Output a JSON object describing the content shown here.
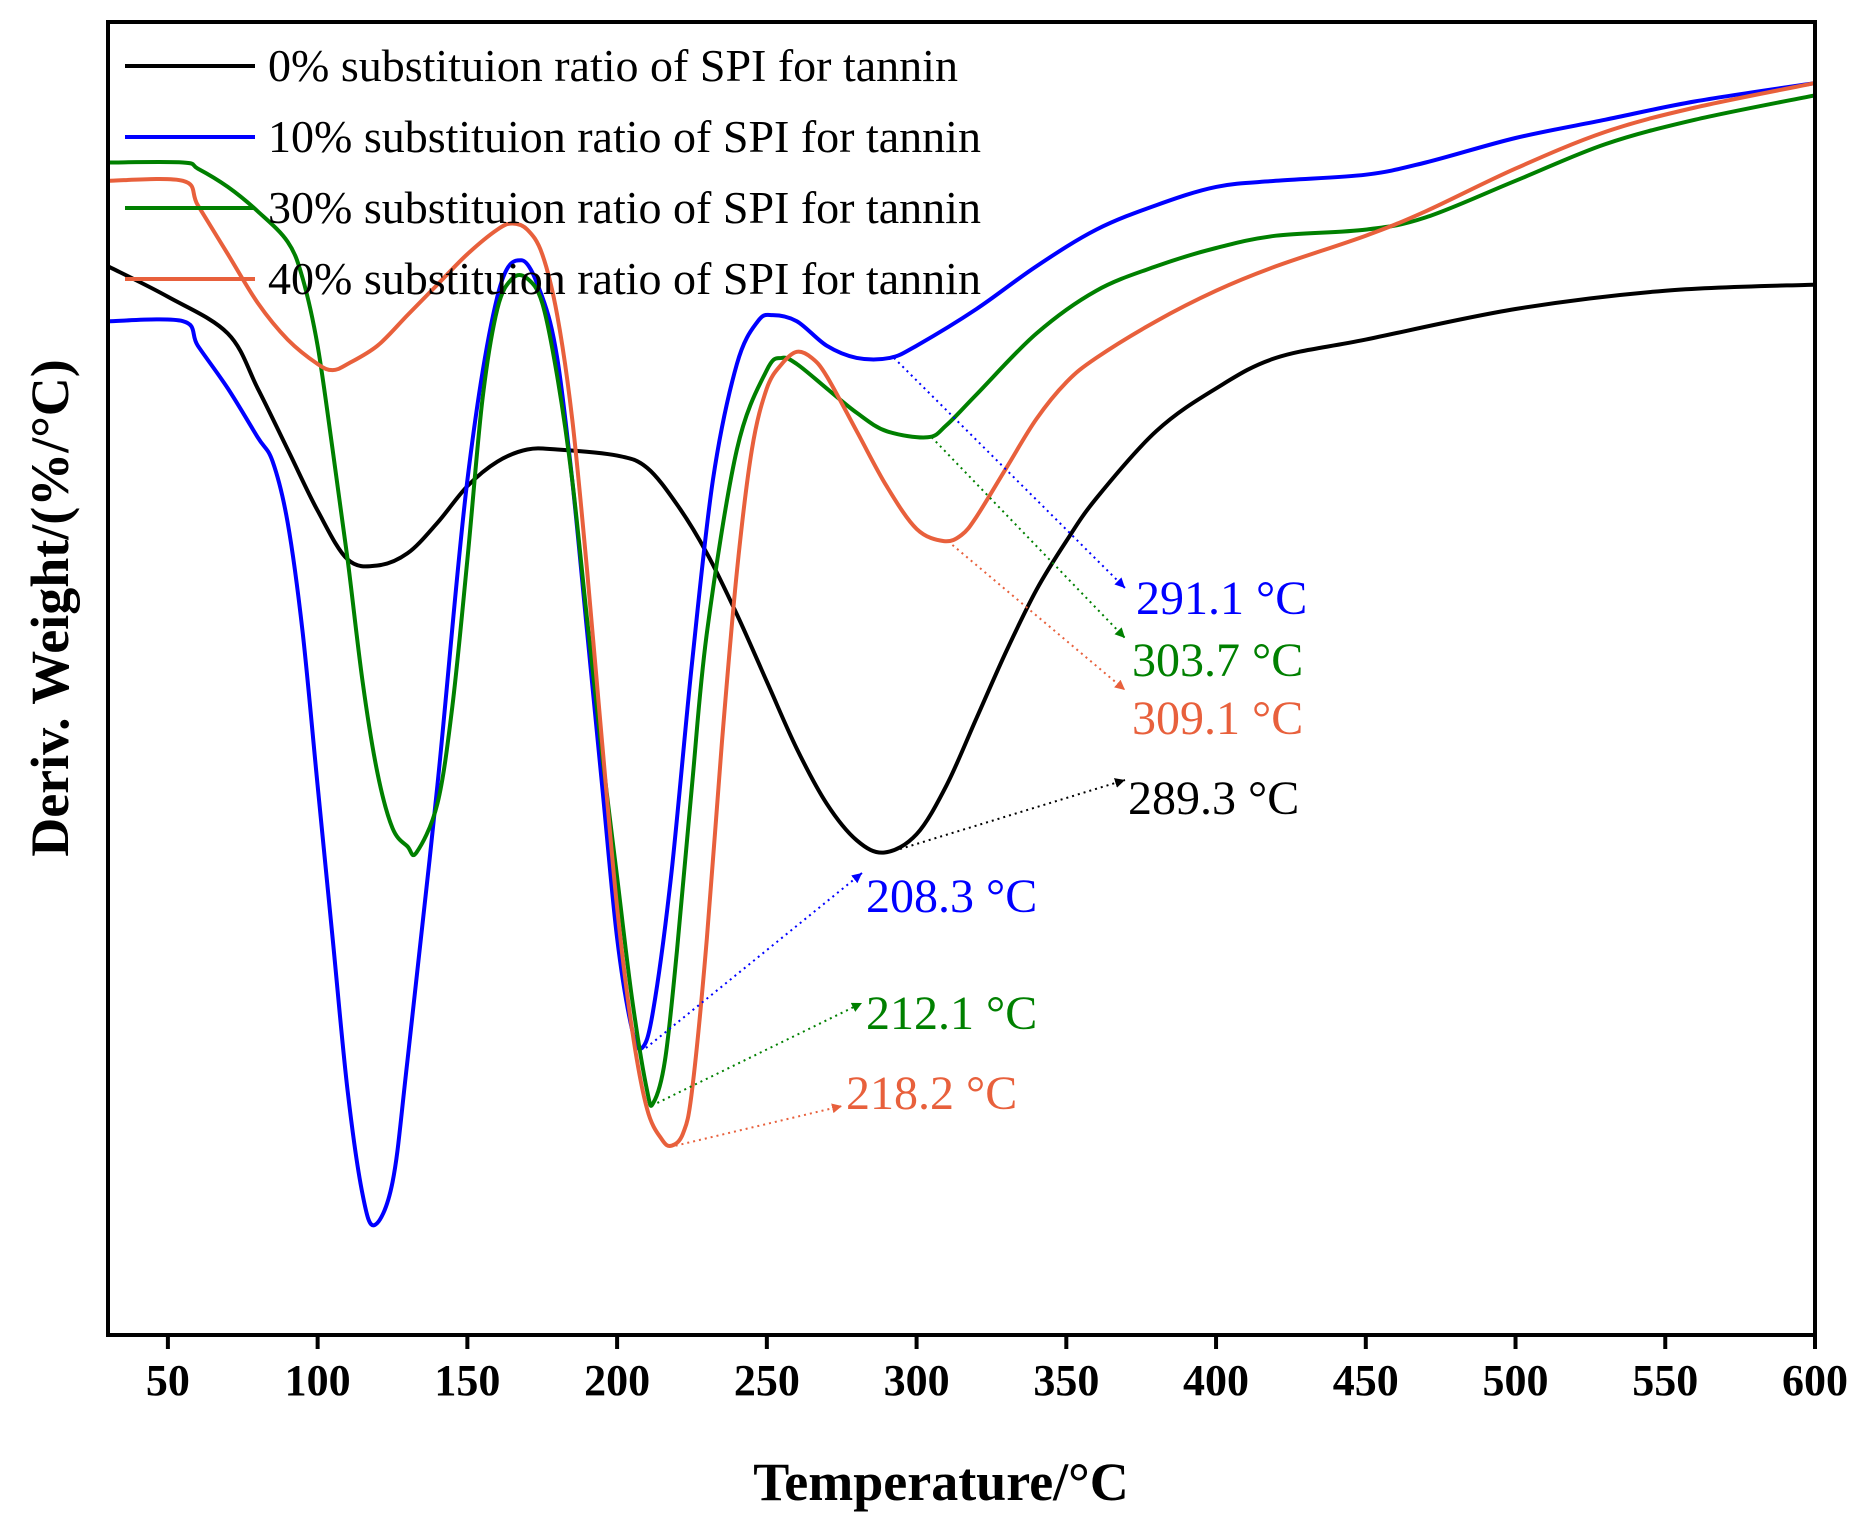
{
  "chart_data": {
    "type": "line",
    "xlabel": "Temperature/°C",
    "ylabel": "Deriv. Weight/(%/°C)",
    "xlim": [
      30,
      600
    ],
    "ylim": [
      -1.75,
      0.4
    ],
    "xticks": [
      50,
      100,
      150,
      200,
      250,
      300,
      350,
      400,
      450,
      500,
      550,
      600
    ],
    "y_tick_labels": false,
    "grid": false,
    "legend_position": "top-left",
    "series": [
      {
        "name": "0% substituion ratio of SPI for tannin",
        "color": "#000000",
        "x": [
          30,
          50,
          70,
          80,
          90,
          100,
          110,
          120,
          130,
          140,
          150,
          160,
          170,
          180,
          200,
          210,
          220,
          230,
          240,
          250,
          260,
          270,
          280,
          289.3,
          300,
          310,
          320,
          330,
          340,
          350,
          360,
          380,
          400,
          420,
          450,
          500,
          550,
          600
        ],
        "y": [
          0.0,
          -0.05,
          -0.11,
          -0.2,
          -0.3,
          -0.4,
          -0.48,
          -0.49,
          -0.47,
          -0.42,
          -0.36,
          -0.32,
          -0.3,
          -0.3,
          -0.31,
          -0.33,
          -0.39,
          -0.47,
          -0.57,
          -0.68,
          -0.79,
          -0.88,
          -0.94,
          -0.96,
          -0.93,
          -0.85,
          -0.74,
          -0.63,
          -0.53,
          -0.45,
          -0.38,
          -0.27,
          -0.2,
          -0.15,
          -0.12,
          -0.07,
          -0.04,
          -0.03
        ]
      },
      {
        "name": "10% substituion ratio of SPI for tannin",
        "color": "#0000ff",
        "x": [
          30,
          55,
          60,
          70,
          80,
          85,
          90,
          95,
          100,
          105,
          110,
          115,
          119,
          125,
          130,
          140,
          150,
          160,
          168,
          175,
          180,
          185,
          190,
          195,
          200,
          205,
          208.3,
          212,
          218,
          225,
          232,
          240,
          247,
          252,
          260,
          270,
          280,
          291.1,
          300,
          320,
          340,
          360,
          380,
          400,
          420,
          450,
          470,
          500,
          530,
          560,
          600
        ],
        "y": [
          -0.09,
          -0.09,
          -0.13,
          -0.2,
          -0.28,
          -0.32,
          -0.42,
          -0.6,
          -0.85,
          -1.1,
          -1.35,
          -1.52,
          -1.57,
          -1.5,
          -1.3,
          -0.85,
          -0.35,
          -0.05,
          0.01,
          -0.05,
          -0.15,
          -0.35,
          -0.6,
          -0.85,
          -1.1,
          -1.25,
          -1.28,
          -1.22,
          -1.0,
          -0.65,
          -0.35,
          -0.16,
          -0.09,
          -0.08,
          -0.09,
          -0.13,
          -0.15,
          -0.15,
          -0.13,
          -0.07,
          0.0,
          0.06,
          0.1,
          0.13,
          0.14,
          0.15,
          0.17,
          0.21,
          0.24,
          0.27,
          0.3
        ]
      },
      {
        "name": "30% substituion ratio of SPI for tannin",
        "color": "#008000",
        "x": [
          30,
          55,
          60,
          70,
          80,
          90,
          95,
          100,
          105,
          110,
          115,
          120,
          125,
          130,
          133,
          140,
          145,
          150,
          155,
          160,
          165,
          170,
          175,
          180,
          185,
          190,
          195,
          200,
          205,
          210,
          212.1,
          216,
          220,
          225,
          230,
          240,
          250,
          255,
          260,
          270,
          280,
          290,
          303.7,
          310,
          320,
          340,
          360,
          380,
          400,
          420,
          450,
          470,
          500,
          530,
          560,
          600
        ],
        "y": [
          0.17,
          0.17,
          0.16,
          0.13,
          0.09,
          0.04,
          -0.02,
          -0.13,
          -0.3,
          -0.48,
          -0.68,
          -0.83,
          -0.92,
          -0.95,
          -0.96,
          -0.88,
          -0.72,
          -0.48,
          -0.22,
          -0.07,
          -0.02,
          -0.02,
          -0.06,
          -0.18,
          -0.35,
          -0.58,
          -0.8,
          -1.0,
          -1.2,
          -1.35,
          -1.37,
          -1.3,
          -1.12,
          -0.85,
          -0.6,
          -0.3,
          -0.17,
          -0.15,
          -0.16,
          -0.2,
          -0.24,
          -0.27,
          -0.28,
          -0.26,
          -0.21,
          -0.11,
          -0.04,
          0.0,
          0.03,
          0.05,
          0.06,
          0.08,
          0.14,
          0.2,
          0.24,
          0.28
        ]
      },
      {
        "name": "40% substituion ratio of SPI for tannin",
        "color": "#e8603c",
        "x": [
          30,
          55,
          60,
          70,
          80,
          90,
          100,
          105,
          110,
          120,
          130,
          140,
          150,
          160,
          165,
          170,
          175,
          180,
          185,
          190,
          195,
          200,
          205,
          210,
          215,
          218.2,
          222,
          225,
          230,
          235,
          240,
          245,
          250,
          255,
          260,
          265,
          270,
          280,
          290,
          300,
          309.1,
          315,
          320,
          330,
          340,
          350,
          360,
          380,
          400,
          420,
          450,
          470,
          500,
          530,
          560,
          600
        ],
        "y": [
          0.14,
          0.14,
          0.1,
          0.02,
          -0.06,
          -0.12,
          -0.16,
          -0.17,
          -0.16,
          -0.13,
          -0.08,
          -0.03,
          0.02,
          0.06,
          0.07,
          0.06,
          0.02,
          -0.08,
          -0.25,
          -0.5,
          -0.78,
          -1.05,
          -1.25,
          -1.38,
          -1.43,
          -1.44,
          -1.42,
          -1.35,
          -1.1,
          -0.78,
          -0.5,
          -0.3,
          -0.2,
          -0.16,
          -0.14,
          -0.15,
          -0.18,
          -0.27,
          -0.36,
          -0.43,
          -0.45,
          -0.44,
          -0.41,
          -0.33,
          -0.25,
          -0.19,
          -0.15,
          -0.09,
          -0.04,
          0.0,
          0.05,
          0.09,
          0.16,
          0.22,
          0.26,
          0.3
        ]
      }
    ],
    "annotations": [
      {
        "text": "291.1 °C",
        "series": 1,
        "x": 291.1,
        "color": "#0000ff"
      },
      {
        "text": "303.7 °C",
        "series": 2,
        "x": 303.7,
        "color": "#008000"
      },
      {
        "text": "309.1 °C",
        "series": 3,
        "x": 309.1,
        "color": "#e8603c"
      },
      {
        "text": "289.3 °C",
        "series": 0,
        "x": 289.3,
        "color": "#000000"
      },
      {
        "text": "208.3 °C",
        "series": 1,
        "x": 208.3,
        "color": "#0000ff"
      },
      {
        "text": "212.1 °C",
        "series": 2,
        "x": 212.1,
        "color": "#008000"
      },
      {
        "text": "218.2 °C",
        "series": 3,
        "x": 218.2,
        "color": "#e8603c"
      }
    ]
  }
}
